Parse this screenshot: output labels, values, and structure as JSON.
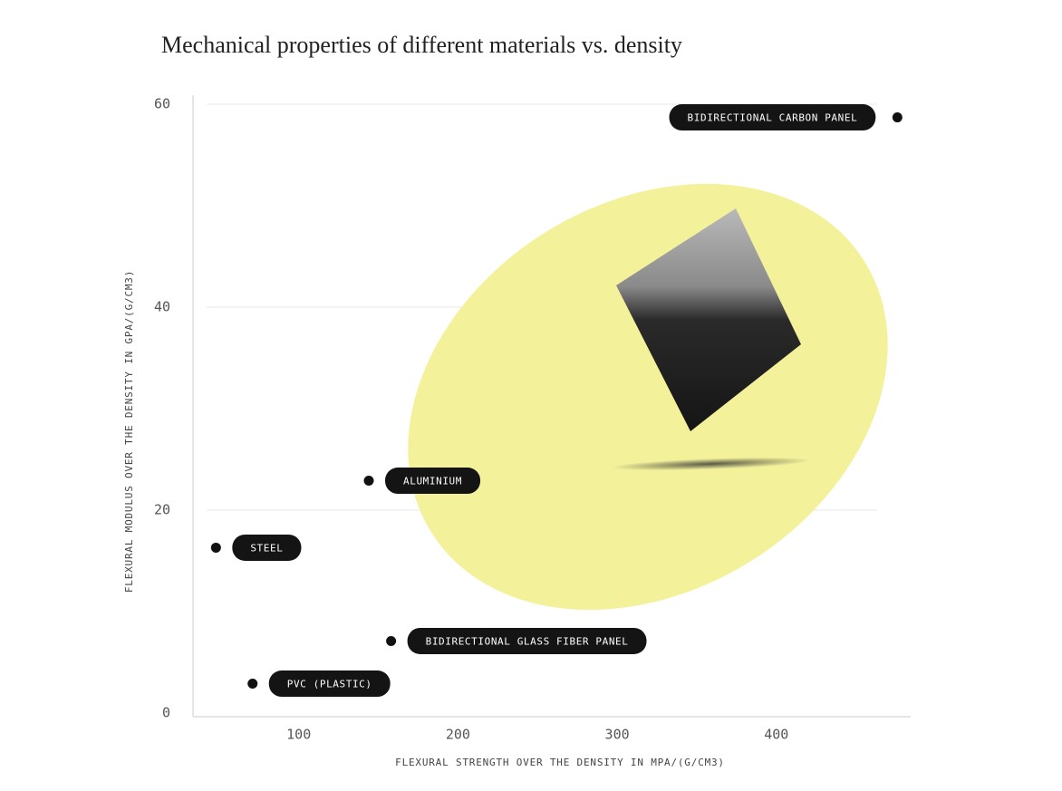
{
  "chart_data": {
    "type": "scatter",
    "title": "Mechanical properties of different materials vs. density",
    "x_label": "FLEXURAL STRENGTH OVER THE DENSITY IN MPA/(G/CM3)",
    "y_label": "FLEXURAL MODULUS OVER THE DENSITY IN GPA/(G/CM3)",
    "xlim": [
      34,
      484
    ],
    "ylim": [
      0,
      61
    ],
    "xticks": [
      100,
      200,
      300,
      400
    ],
    "yticks": [
      0,
      20,
      40,
      60
    ],
    "grid": true,
    "color": "#111111",
    "points": [
      {
        "label": "BIDIRECTIONAL CARBON PANEL",
        "x": 476,
        "y": 58.7
      },
      {
        "label": "ALUMINIUM",
        "x": 144,
        "y": 22.9
      },
      {
        "label": "STEEL",
        "x": 48,
        "y": 16.3
      },
      {
        "label": "BIDIRECTIONAL GLASS FIBER PANEL",
        "x": 158,
        "y": 7.1
      },
      {
        "label": "PVC (PLASTIC)",
        "x": 71,
        "y": 2.9
      }
    ]
  }
}
